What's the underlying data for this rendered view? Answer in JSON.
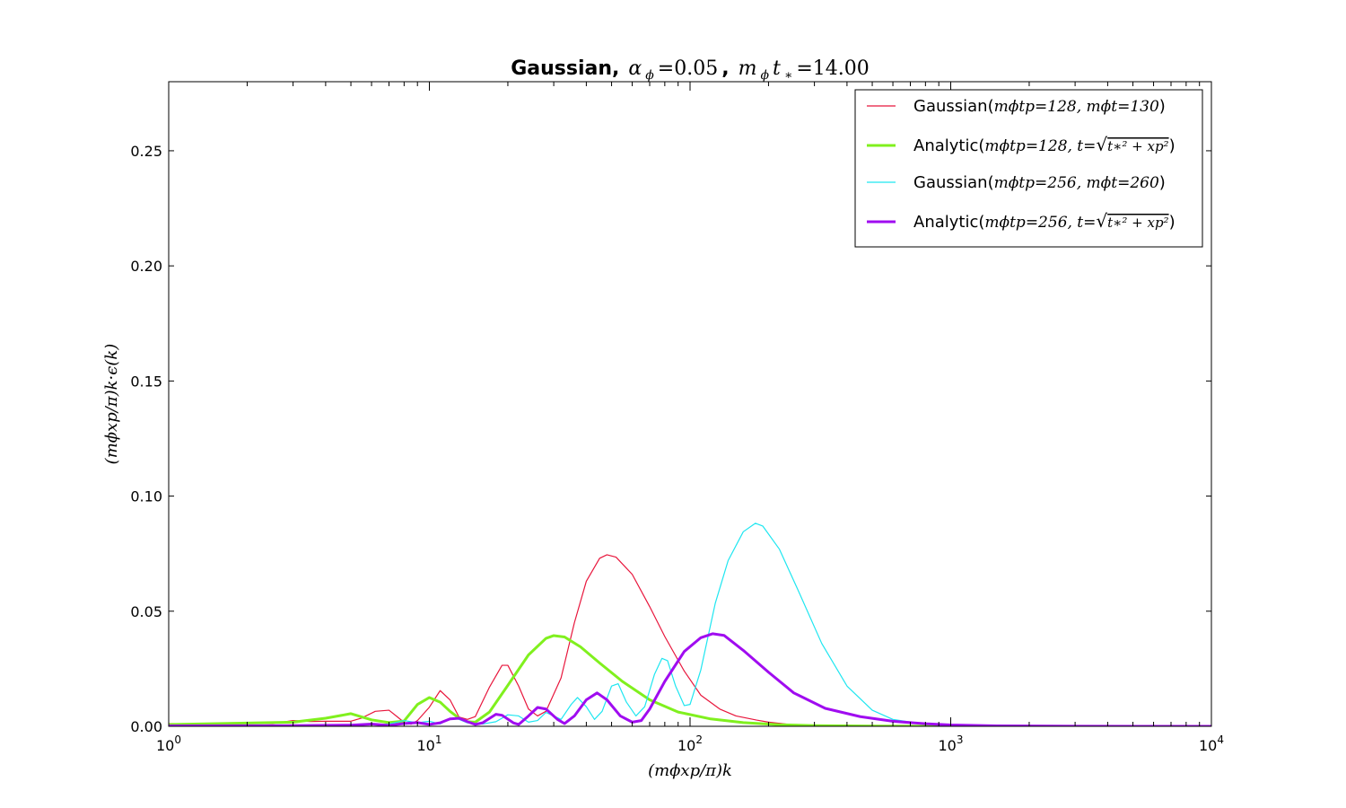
{
  "chart_data": {
    "type": "line",
    "title": {
      "bold": "Gaussian,",
      "part1": "α",
      "part1_sub": "ϕ",
      "part1_val": "=0.05",
      "sep": ",",
      "part2": "m",
      "part2_sub": "ϕ",
      "part2_var": "t",
      "part2_sub2": "∗",
      "part2_val": "=14.00"
    },
    "xlabel": "(mϕxp/π)k",
    "ylabel": "(mϕxp/π)k·ϵ(k)",
    "xscale": "log",
    "xlim": [
      1,
      10000
    ],
    "ylim": [
      0,
      0.28
    ],
    "x_ticks": [
      {
        "base": "10",
        "exp": "0",
        "value": 1
      },
      {
        "base": "10",
        "exp": "1",
        "value": 10
      },
      {
        "base": "10",
        "exp": "2",
        "value": 100
      },
      {
        "base": "10",
        "exp": "3",
        "value": 1000
      },
      {
        "base": "10",
        "exp": "4",
        "value": 10000
      }
    ],
    "y_ticks": [
      {
        "label": "0.00",
        "value": 0.0
      },
      {
        "label": "0.05",
        "value": 0.05
      },
      {
        "label": "0.10",
        "value": 0.1
      },
      {
        "label": "0.15",
        "value": 0.15
      },
      {
        "label": "0.20",
        "value": 0.2
      },
      {
        "label": "0.25",
        "value": 0.25
      }
    ],
    "legend_position": "top-right",
    "series": [
      {
        "name": "Gaussian(mϕtp=128, mϕt=130)",
        "legend": {
          "prefix": "Gaussian(",
          "math": "mϕtp=128, mϕt=130",
          "suffix": ")"
        },
        "color": "#e8163c",
        "width": 1.2,
        "points": [
          [
            1,
            0.0012
          ],
          [
            1.5,
            0.0009
          ],
          [
            2,
            0.0014
          ],
          [
            2.5,
            0.0012
          ],
          [
            3,
            0.0025
          ],
          [
            3.5,
            0.0021
          ],
          [
            4,
            0.0022
          ],
          [
            5,
            0.0022
          ],
          [
            5.5,
            0.0036
          ],
          [
            6.2,
            0.0065
          ],
          [
            7,
            0.007
          ],
          [
            7.5,
            0.0043
          ],
          [
            8,
            0.0017
          ],
          [
            8.5,
            0.0009
          ],
          [
            9,
            0.0025
          ],
          [
            10,
            0.0083
          ],
          [
            11,
            0.0155
          ],
          [
            12,
            0.0115
          ],
          [
            13,
            0.004
          ],
          [
            14,
            0.003
          ],
          [
            15,
            0.0042
          ],
          [
            17,
            0.017
          ],
          [
            19,
            0.0265
          ],
          [
            20,
            0.0265
          ],
          [
            22,
            0.0175
          ],
          [
            24,
            0.0075
          ],
          [
            26,
            0.0045
          ],
          [
            28,
            0.0065
          ],
          [
            32,
            0.021
          ],
          [
            36,
            0.045
          ],
          [
            40,
            0.063
          ],
          [
            45,
            0.073
          ],
          [
            48,
            0.0745
          ],
          [
            52,
            0.0735
          ],
          [
            60,
            0.066
          ],
          [
            70,
            0.052
          ],
          [
            80,
            0.039
          ],
          [
            95,
            0.024
          ],
          [
            110,
            0.0135
          ],
          [
            130,
            0.0075
          ],
          [
            150,
            0.0045
          ],
          [
            180,
            0.0027
          ],
          [
            200,
            0.0018
          ],
          [
            250,
            0.0006
          ],
          [
            300,
            0.0002
          ],
          [
            400,
            5e-05
          ],
          [
            1000,
            0
          ],
          [
            10000,
            0
          ]
        ]
      },
      {
        "name": "Analytic(mϕtp=128, t=√(t∗²+xp²))",
        "legend": {
          "prefix": "Analytic(",
          "math": "mϕtp=128, t=",
          "suffix": ")"
        },
        "color": "#80f01e",
        "width": 3,
        "points": [
          [
            1,
            0.0008
          ],
          [
            2,
            0.0014
          ],
          [
            3,
            0.0018
          ],
          [
            4,
            0.0035
          ],
          [
            5,
            0.0055
          ],
          [
            6,
            0.0028
          ],
          [
            7,
            0.0016
          ],
          [
            8,
            0.0023
          ],
          [
            9,
            0.0095
          ],
          [
            10,
            0.0125
          ],
          [
            11,
            0.0105
          ],
          [
            12,
            0.0065
          ],
          [
            13,
            0.0035
          ],
          [
            14,
            0.002
          ],
          [
            15,
            0.0018
          ],
          [
            17,
            0.0062
          ],
          [
            20,
            0.0178
          ],
          [
            24,
            0.031
          ],
          [
            28,
            0.0382
          ],
          [
            30,
            0.0394
          ],
          [
            33,
            0.0388
          ],
          [
            38,
            0.0345
          ],
          [
            45,
            0.0275
          ],
          [
            55,
            0.0195
          ],
          [
            70,
            0.0115
          ],
          [
            90,
            0.0062
          ],
          [
            120,
            0.0032
          ],
          [
            160,
            0.0016
          ],
          [
            220,
            0.0007
          ],
          [
            300,
            0.0003
          ],
          [
            500,
            8e-05
          ],
          [
            1000,
            0
          ],
          [
            10000,
            0
          ]
        ]
      },
      {
        "name": "Gaussian(mϕtp=256, mϕt=260)",
        "legend": {
          "prefix": "Gaussian(",
          "math": "mϕtp=256, mϕt=260",
          "suffix": ")"
        },
        "color": "#1ee6f0",
        "width": 1.2,
        "points": [
          [
            1,
            0.0003
          ],
          [
            3,
            0.0005
          ],
          [
            5,
            0.0008
          ],
          [
            7,
            0.001
          ],
          [
            8,
            0.0025
          ],
          [
            9,
            0.0015
          ],
          [
            10,
            0.0022
          ],
          [
            11,
            0.001
          ],
          [
            12,
            0.0035
          ],
          [
            13,
            0.003
          ],
          [
            14,
            0.0015
          ],
          [
            16,
            0.001
          ],
          [
            18,
            0.002
          ],
          [
            20,
            0.005
          ],
          [
            22,
            0.0045
          ],
          [
            24,
            0.0018
          ],
          [
            26,
            0.0025
          ],
          [
            28,
            0.006
          ],
          [
            30,
            0.0045
          ],
          [
            32,
            0.003
          ],
          [
            35,
            0.0095
          ],
          [
            37,
            0.0125
          ],
          [
            40,
            0.0085
          ],
          [
            43,
            0.003
          ],
          [
            46,
            0.0065
          ],
          [
            50,
            0.0175
          ],
          [
            53,
            0.0185
          ],
          [
            57,
            0.0105
          ],
          [
            62,
            0.0045
          ],
          [
            67,
            0.0085
          ],
          [
            73,
            0.0225
          ],
          [
            78,
            0.0295
          ],
          [
            82,
            0.0285
          ],
          [
            88,
            0.0175
          ],
          [
            95,
            0.009
          ],
          [
            100,
            0.0095
          ],
          [
            110,
            0.0245
          ],
          [
            125,
            0.0535
          ],
          [
            140,
            0.072
          ],
          [
            160,
            0.0845
          ],
          [
            178,
            0.0882
          ],
          [
            190,
            0.087
          ],
          [
            220,
            0.077
          ],
          [
            260,
            0.059
          ],
          [
            320,
            0.036
          ],
          [
            400,
            0.0175
          ],
          [
            500,
            0.007
          ],
          [
            600,
            0.003
          ],
          [
            800,
            0.0009
          ],
          [
            1000,
            0.0003
          ],
          [
            2000,
            0
          ],
          [
            10000,
            0
          ]
        ]
      },
      {
        "name": "Analytic(mϕtp=256, t=√(t∗²+xp²))",
        "legend": {
          "prefix": "Analytic(",
          "math": "mϕtp=256, t=",
          "suffix": ")"
        },
        "color": "#a00cf0",
        "width": 3,
        "points": [
          [
            1,
            0.0002
          ],
          [
            3,
            0.0003
          ],
          [
            5,
            0.0005
          ],
          [
            6,
            0.001
          ],
          [
            7,
            0.0004
          ],
          [
            8,
            0.0012
          ],
          [
            9,
            0.0016
          ],
          [
            10,
            0.0008
          ],
          [
            11,
            0.0015
          ],
          [
            12,
            0.0032
          ],
          [
            13,
            0.0035
          ],
          [
            14,
            0.002
          ],
          [
            15,
            0.0008
          ],
          [
            16,
            0.0015
          ],
          [
            18,
            0.0052
          ],
          [
            19,
            0.0048
          ],
          [
            21,
            0.0015
          ],
          [
            22,
            0.0008
          ],
          [
            24,
            0.0045
          ],
          [
            26,
            0.0082
          ],
          [
            28,
            0.0075
          ],
          [
            31,
            0.003
          ],
          [
            33,
            0.0012
          ],
          [
            36,
            0.0045
          ],
          [
            40,
            0.0115
          ],
          [
            44,
            0.0145
          ],
          [
            48,
            0.0115
          ],
          [
            54,
            0.0045
          ],
          [
            60,
            0.0018
          ],
          [
            65,
            0.0025
          ],
          [
            70,
            0.0075
          ],
          [
            80,
            0.0195
          ],
          [
            95,
            0.0325
          ],
          [
            110,
            0.0385
          ],
          [
            122,
            0.0402
          ],
          [
            135,
            0.0395
          ],
          [
            160,
            0.033
          ],
          [
            200,
            0.0235
          ],
          [
            250,
            0.0145
          ],
          [
            330,
            0.0078
          ],
          [
            450,
            0.0042
          ],
          [
            600,
            0.0022
          ],
          [
            800,
            0.0011
          ],
          [
            1000,
            0.0006
          ],
          [
            1500,
            0.0002
          ],
          [
            3000,
            3e-05
          ],
          [
            10000,
            0
          ]
        ]
      }
    ]
  }
}
